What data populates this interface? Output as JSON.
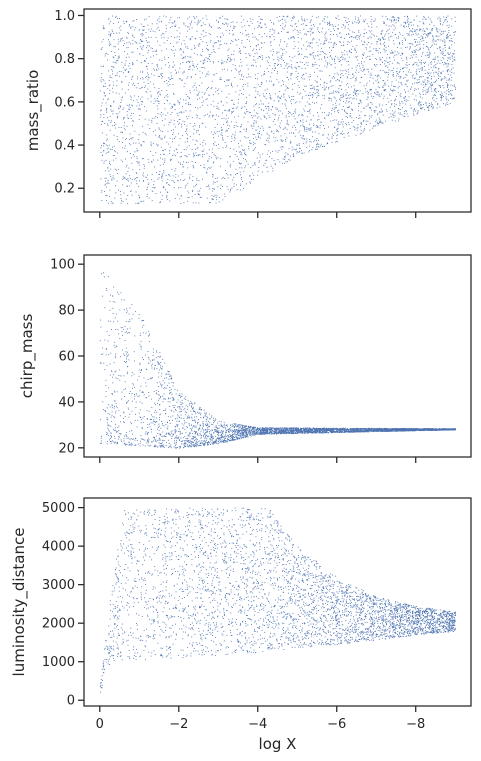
{
  "chart_data": [
    {
      "type": "scatter",
      "id": "mass_ratio",
      "title": "",
      "xlabel": "",
      "ylabel": "mass_ratio",
      "xlim": [
        0.4,
        -9.4
      ],
      "ylim": [
        0.09,
        1.03
      ],
      "x_ticks": [
        0,
        -2,
        -4,
        -6,
        -8
      ],
      "x_tick_labels": [
        "",
        "",
        "",
        "",
        ""
      ],
      "y_ticks": [
        0.2,
        0.4,
        0.6,
        0.8,
        1.0
      ],
      "y_tick_labels": [
        "0.2",
        "0.4",
        "0.6",
        "0.8",
        "1.0"
      ],
      "grid": false,
      "color": "#4c72b0",
      "description": "dense point cloud: upper bound ~1.0 everywhere; lower bound ~0.13 near x 0..-3, rising to ~0.6 at x=-9",
      "x_range": [
        0,
        -9
      ],
      "upper_edge": [
        [
          0,
          1.0
        ],
        [
          -9,
          1.0
        ]
      ],
      "lower_edge": [
        [
          0,
          0.13
        ],
        [
          -3,
          0.13
        ],
        [
          -5,
          0.35
        ],
        [
          -7,
          0.48
        ],
        [
          -9,
          0.6
        ]
      ]
    },
    {
      "type": "scatter",
      "id": "chirp_mass",
      "title": "",
      "xlabel": "",
      "ylabel": "chirp_mass",
      "xlim": [
        0.4,
        -9.4
      ],
      "ylim": [
        16,
        104
      ],
      "x_ticks": [
        0,
        -2,
        -4,
        -6,
        -8
      ],
      "x_tick_labels": [
        "",
        "",
        "",
        "",
        ""
      ],
      "y_ticks": [
        20,
        40,
        60,
        80,
        100
      ],
      "y_tick_labels": [
        "20",
        "40",
        "60",
        "80",
        "100"
      ],
      "grid": false,
      "color": "#4c72b0",
      "description": "points near 100 at x~0 decaying to ~28 by x~-4, flat band 26-30 out to x=-9, a lower arm from ~21 at x=-2 rising to 28",
      "upper_edge": [
        [
          0,
          100
        ],
        [
          -1,
          80
        ],
        [
          -2,
          45
        ],
        [
          -3,
          32
        ],
        [
          -4,
          29
        ],
        [
          -9,
          28.5
        ]
      ],
      "lower_edge": [
        [
          0,
          22
        ],
        [
          -2,
          20
        ],
        [
          -3,
          22
        ],
        [
          -4,
          26
        ],
        [
          -9,
          28
        ]
      ]
    },
    {
      "type": "scatter",
      "id": "luminosity_distance",
      "title": "",
      "xlabel": "log X",
      "ylabel": "luminosity_distance",
      "xlim": [
        0.4,
        -9.4
      ],
      "ylim": [
        -150,
        5250
      ],
      "x_ticks": [
        0,
        -2,
        -4,
        -6,
        -8
      ],
      "x_tick_labels": [
        "0",
        "−2",
        "−4",
        "−6",
        "−8"
      ],
      "y_ticks": [
        0,
        1000,
        2000,
        3000,
        4000,
        5000
      ],
      "y_tick_labels": [
        "0",
        "1000",
        "2000",
        "3000",
        "4000",
        "5000"
      ],
      "grid": false,
      "color": "#4c72b0",
      "description": "points rise steeply from ~200 at x=0 to 5000 by x~-0.5, capped at 5000 until x~-4.3, then upper edge falls to ~2300 at x=-9; lower edge ~1000 rising to ~1800 at x=-9",
      "upper_edge": [
        [
          0,
          400
        ],
        [
          -0.3,
          3000
        ],
        [
          -0.6,
          5000
        ],
        [
          -4.3,
          5000
        ],
        [
          -5,
          4000
        ],
        [
          -6,
          3200
        ],
        [
          -7,
          2700
        ],
        [
          -8,
          2450
        ],
        [
          -9,
          2300
        ]
      ],
      "lower_edge": [
        [
          0,
          200
        ],
        [
          -0.3,
          1000
        ],
        [
          -2,
          1100
        ],
        [
          -4,
          1250
        ],
        [
          -6,
          1450
        ],
        [
          -8,
          1700
        ],
        [
          -9,
          1800
        ]
      ]
    }
  ]
}
